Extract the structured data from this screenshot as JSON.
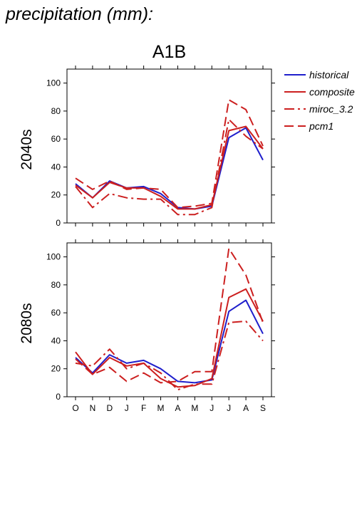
{
  "heading": "precipitation (mm):",
  "colors": {
    "historical": "#1f1fcc",
    "models": "#cc1f1f"
  },
  "chart_data": {
    "type": "line",
    "title": "A1B",
    "categories": [
      "O",
      "N",
      "D",
      "J",
      "F",
      "M",
      "A",
      "M",
      "J",
      "J",
      "A",
      "S"
    ],
    "ylim": [
      0,
      110
    ],
    "yticks": [
      "0",
      "20",
      "40",
      "60",
      "80",
      "100"
    ],
    "legend": {
      "placement": "right",
      "entries": [
        "historical",
        "composite",
        "miroc_3.2",
        "pcm1"
      ]
    },
    "panels": [
      {
        "label": "2040s",
        "series": [
          {
            "name": "historical",
            "values": [
              28,
              18,
              30,
              25,
              26,
              21,
              11,
              10,
              12,
              61,
              68,
              45
            ]
          },
          {
            "name": "composite",
            "values": [
              27,
              18,
              29,
              25,
              25,
              19,
              10,
              10,
              13,
              66,
              69,
              53
            ]
          },
          {
            "name": "miroc_3.2",
            "values": [
              26,
              11,
              21,
              18,
              17,
              17,
              6,
              6,
              11,
              74,
              62,
              53
            ]
          },
          {
            "name": "pcm1",
            "values": [
              32,
              24,
              30,
              24,
              25,
              24,
              11,
              12,
              14,
              88,
              81,
              55
            ]
          }
        ]
      },
      {
        "label": "2080s",
        "series": [
          {
            "name": "historical",
            "values": [
              28,
              17,
              30,
              24,
              26,
              20,
              11,
              10,
              12,
              61,
              69,
              45
            ]
          },
          {
            "name": "composite",
            "values": [
              32,
              16,
              28,
              22,
              24,
              13,
              7,
              8,
              13,
              71,
              77,
              54
            ]
          },
          {
            "name": "miroc_3.2",
            "values": [
              24,
              22,
              34,
              20,
              24,
              17,
              5,
              9,
              9,
              53,
              54,
              40
            ]
          },
          {
            "name": "pcm1",
            "values": [
              27,
              16,
              21,
              11,
              17,
              10,
              11,
              18,
              18,
              106,
              87,
              53
            ]
          }
        ]
      }
    ]
  }
}
